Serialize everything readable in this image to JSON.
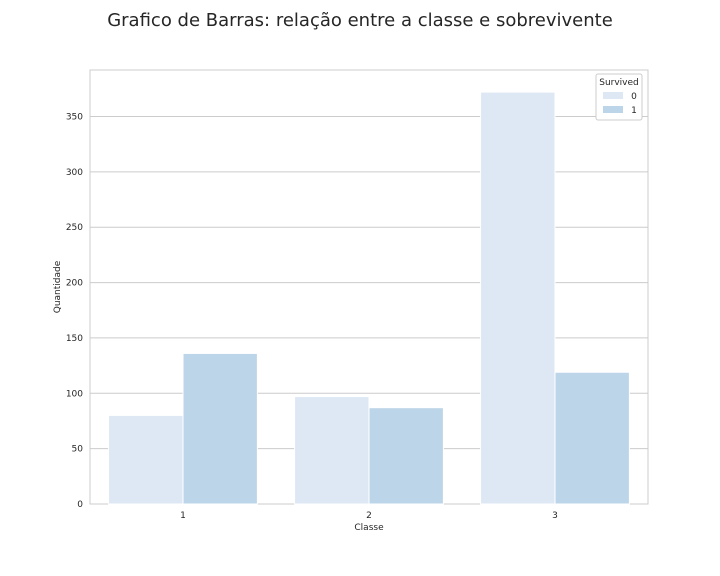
{
  "chart_data": {
    "type": "bar",
    "title": "Grafico de Barras: relação entre a classe e sobrevivente",
    "xlabel": "Classe",
    "ylabel": "Quantidade",
    "categories": [
      "1",
      "2",
      "3"
    ],
    "series": [
      {
        "name": "0",
        "values": [
          80,
          97,
          372
        ],
        "color": "#dde8f4"
      },
      {
        "name": "1",
        "values": [
          136,
          87,
          119
        ],
        "color": "#bdd5e8"
      }
    ],
    "ylim": [
      0,
      392
    ],
    "yticks": [
      0,
      50,
      100,
      150,
      200,
      250,
      300,
      350
    ],
    "grid": true,
    "legend": {
      "title": "Survived",
      "placement": "top-right"
    }
  }
}
